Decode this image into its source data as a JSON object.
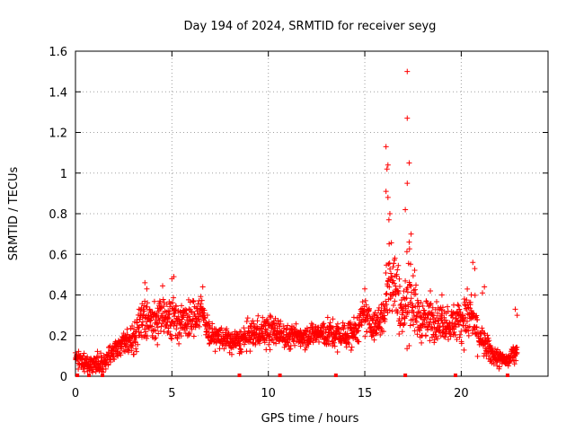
{
  "chart_data": {
    "type": "scatter",
    "title": "Day 194 of 2024, SRMTID for receiver seyg",
    "xlabel": "GPS time / hours",
    "ylabel": "SRMTID / TECUs",
    "xlim": [
      0,
      24.5
    ],
    "ylim": [
      0,
      1.6
    ],
    "grid": true,
    "legend": "none",
    "marker": "plus",
    "color": "#ff0000",
    "x_ticks": [
      0,
      5,
      10,
      15,
      20
    ],
    "y_ticks": [
      0,
      0.2,
      0.4,
      0.6,
      0.8,
      1,
      1.2,
      1.4,
      1.6
    ],
    "x_tick_labels": [
      "0",
      "5",
      "10",
      "15",
      "20"
    ],
    "y_tick_labels": [
      "0",
      "0.2",
      "0.4",
      "0.6",
      "0.8",
      "1",
      "1.2",
      "1.4",
      "1.6"
    ],
    "series": [
      {
        "name": "SRMTID",
        "profile": [
          [
            0.0,
            0.08,
            0.03
          ],
          [
            0.5,
            0.07,
            0.03
          ],
          [
            1.0,
            0.06,
            0.03
          ],
          [
            1.5,
            0.07,
            0.04
          ],
          [
            2.0,
            0.13,
            0.04
          ],
          [
            2.5,
            0.17,
            0.04
          ],
          [
            3.0,
            0.17,
            0.05
          ],
          [
            3.5,
            0.3,
            0.08
          ],
          [
            4.0,
            0.26,
            0.07
          ],
          [
            4.5,
            0.3,
            0.07
          ],
          [
            5.0,
            0.3,
            0.08
          ],
          [
            5.5,
            0.26,
            0.06
          ],
          [
            6.0,
            0.28,
            0.06
          ],
          [
            6.5,
            0.33,
            0.06
          ],
          [
            7.0,
            0.2,
            0.04
          ],
          [
            7.5,
            0.19,
            0.04
          ],
          [
            8.0,
            0.17,
            0.04
          ],
          [
            8.5,
            0.17,
            0.04
          ],
          [
            9.0,
            0.2,
            0.05
          ],
          [
            9.5,
            0.22,
            0.05
          ],
          [
            10.0,
            0.22,
            0.06
          ],
          [
            10.5,
            0.22,
            0.05
          ],
          [
            11.0,
            0.19,
            0.04
          ],
          [
            11.5,
            0.2,
            0.04
          ],
          [
            12.0,
            0.2,
            0.04
          ],
          [
            12.5,
            0.21,
            0.04
          ],
          [
            13.0,
            0.21,
            0.05
          ],
          [
            13.5,
            0.2,
            0.05
          ],
          [
            14.0,
            0.2,
            0.05
          ],
          [
            14.5,
            0.22,
            0.05
          ],
          [
            15.0,
            0.3,
            0.06
          ],
          [
            15.5,
            0.24,
            0.05
          ],
          [
            16.0,
            0.3,
            0.07
          ],
          [
            16.3,
            0.55,
            0.18
          ],
          [
            16.7,
            0.4,
            0.12
          ],
          [
            17.0,
            0.3,
            0.08
          ],
          [
            17.3,
            0.45,
            0.18
          ],
          [
            17.7,
            0.3,
            0.08
          ],
          [
            18.0,
            0.27,
            0.07
          ],
          [
            18.5,
            0.28,
            0.07
          ],
          [
            19.0,
            0.27,
            0.06
          ],
          [
            19.5,
            0.26,
            0.06
          ],
          [
            20.0,
            0.28,
            0.07
          ],
          [
            20.5,
            0.3,
            0.1
          ],
          [
            21.0,
            0.18,
            0.05
          ],
          [
            21.5,
            0.12,
            0.04
          ],
          [
            22.0,
            0.08,
            0.03
          ],
          [
            22.5,
            0.08,
            0.03
          ],
          [
            22.9,
            0.15,
            0.07
          ]
        ],
        "outliers": [
          [
            17.2,
            1.5
          ],
          [
            17.2,
            1.27
          ],
          [
            17.3,
            1.05
          ],
          [
            17.2,
            0.95
          ],
          [
            17.1,
            0.82
          ],
          [
            16.1,
            1.13
          ],
          [
            16.2,
            1.04
          ],
          [
            16.15,
            1.02
          ],
          [
            16.1,
            0.91
          ],
          [
            16.2,
            0.88
          ],
          [
            16.3,
            0.8
          ],
          [
            16.25,
            0.77
          ],
          [
            17.4,
            0.7
          ],
          [
            17.3,
            0.66
          ],
          [
            3.6,
            0.46
          ],
          [
            3.7,
            0.43
          ],
          [
            5.1,
            0.49
          ],
          [
            5.0,
            0.48
          ],
          [
            6.6,
            0.44
          ],
          [
            15.0,
            0.43
          ],
          [
            20.6,
            0.56
          ],
          [
            20.7,
            0.53
          ],
          [
            21.2,
            0.44
          ],
          [
            21.1,
            0.41
          ],
          [
            22.8,
            0.33
          ],
          [
            22.9,
            0.3
          ],
          [
            19.0,
            0.4
          ],
          [
            18.4,
            0.42
          ]
        ]
      }
    ],
    "bottom_markers_x": [
      0.1,
      0.7,
      1.4,
      8.5,
      10.6,
      13.5,
      17.1,
      19.7,
      22.4
    ]
  }
}
